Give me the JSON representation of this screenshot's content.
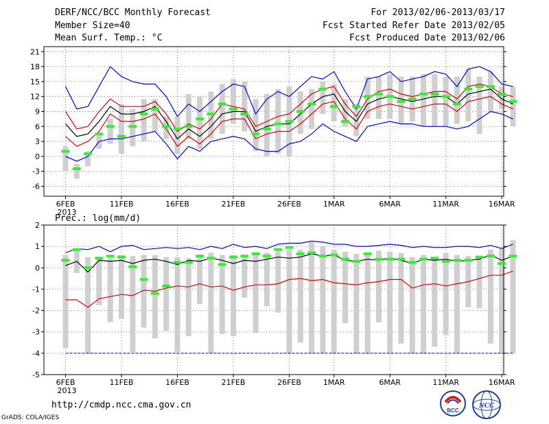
{
  "header": {
    "title": "DERF/NCC/BCC Monthly Forecast",
    "member_size": "Member Size=40",
    "variable": "Mean Surf. Temp.: °C",
    "forecast_period": "For 2013/02/06-2013/03/17",
    "start_date": "Fcst Started Refer Date 2013/02/05",
    "produced_date": "Fcst Produced Date 2013/02/06"
  },
  "footer": {
    "url": "http://cmdp.ncc.cma.gov.cn",
    "grads": "GrADS: COLA/IGES",
    "logo_left_text": "BCC",
    "logo_right_text": "NCC"
  },
  "colors": {
    "envelope": "#0000dd",
    "spread": "#dd0000",
    "mean": "#000000",
    "box": "#cfcfcf",
    "median": "#33ee33",
    "zero_line": "#000088"
  },
  "chart_data": [
    {
      "type": "line",
      "title": "Mean Surf. Temp.: °C",
      "x_tick_labels": [
        "6FEB",
        "11FEB",
        "16FEB",
        "21FEB",
        "26FEB",
        "1MAR",
        "6MAR",
        "11MAR",
        "16MAR"
      ],
      "x_tick_days": [
        0,
        5,
        10,
        15,
        20,
        24,
        29,
        34,
        39
      ],
      "year_label": "2013",
      "ylim": [
        -8,
        22
      ],
      "yticks": [
        -6,
        -3,
        0,
        3,
        6,
        9,
        12,
        15,
        18,
        21
      ],
      "ytick_labels": [
        "-6",
        "-3",
        "0",
        "3",
        "6",
        "9",
        "12",
        "15",
        "18",
        "21"
      ],
      "grid": true,
      "series": [
        {
          "name": "max",
          "values": [
            14,
            9.5,
            10,
            14,
            18,
            16,
            15,
            14.5,
            14.5,
            12,
            8,
            10.5,
            9,
            11,
            13,
            14.5,
            14,
            8.5,
            11.5,
            13,
            12,
            14,
            16,
            15.5,
            17,
            13,
            9.5,
            15.5,
            16,
            17,
            15,
            15.5,
            16,
            17,
            16.5,
            14,
            17.5,
            18,
            17,
            14.5,
            14
          ]
        },
        {
          "name": "upper",
          "values": [
            9,
            5.5,
            6,
            9,
            11.5,
            10,
            10,
            10,
            11,
            8.5,
            5,
            6.5,
            5.5,
            7.5,
            10.5,
            10,
            9.5,
            6,
            7,
            8,
            8.5,
            10.5,
            12.5,
            13.5,
            14,
            10.5,
            8,
            11.5,
            13,
            13.5,
            12.5,
            12,
            12.5,
            13,
            13,
            11.5,
            14,
            14.5,
            14,
            12.5,
            12
          ]
        },
        {
          "name": "mean",
          "values": [
            6.5,
            4,
            4.5,
            7,
            10,
            8.5,
            8.5,
            9,
            10,
            7,
            3.5,
            5.5,
            4,
            6,
            8.5,
            9,
            9,
            5,
            6,
            6.5,
            6.5,
            8.5,
            10.5,
            12,
            12.5,
            9,
            7,
            10.5,
            11.5,
            12,
            11.5,
            11,
            11.5,
            12,
            12,
            10.5,
            12.5,
            13,
            13.5,
            11.5,
            10.5
          ]
        },
        {
          "name": "lower",
          "values": [
            4,
            2,
            3,
            5,
            8.5,
            7,
            7,
            7.5,
            8.5,
            5.5,
            2,
            4,
            2.5,
            4.5,
            7,
            7.5,
            7.5,
            3.5,
            4.5,
            5,
            5,
            6.5,
            8.5,
            10.5,
            11,
            7.5,
            5.5,
            9,
            10,
            10.5,
            10,
            9.5,
            10,
            10.5,
            10.5,
            9,
            11,
            11.5,
            12,
            10.5,
            9.5
          ]
        },
        {
          "name": "min",
          "values": [
            0,
            -1,
            0,
            3,
            3.5,
            3.5,
            4,
            4.5,
            5,
            2.5,
            -0.5,
            2,
            1,
            3,
            3.5,
            4,
            3.5,
            1.5,
            1,
            1,
            2.5,
            3,
            4.5,
            6.5,
            5,
            4,
            3,
            6,
            6.5,
            7,
            6.5,
            6.5,
            6,
            6,
            6,
            5.5,
            6,
            7.5,
            9,
            8.5,
            7.5
          ]
        }
      ],
      "box_top": [
        2,
        -1.5,
        1,
        4.5,
        7.5,
        10.5,
        9.5,
        11.5,
        11.5,
        8,
        8,
        12.5,
        12,
        13,
        14.5,
        15.5,
        15,
        11.5,
        12.5,
        13.5,
        14,
        13,
        13.5,
        15,
        14.5,
        11.5,
        10.5,
        16,
        16,
        16.5,
        16,
        16,
        16.5,
        16.5,
        16,
        16,
        17.5,
        16,
        17,
        14,
        14
      ],
      "box_bottom": [
        -3,
        -4.5,
        -2,
        1.5,
        2.5,
        0.5,
        2,
        3,
        5,
        3.5,
        0.5,
        3.5,
        1.5,
        3.5,
        4.5,
        6.5,
        5,
        1,
        0,
        0.5,
        0,
        4.5,
        5.5,
        8.5,
        7,
        6,
        4,
        7.5,
        7.5,
        7.5,
        6.5,
        7,
        6,
        6,
        6,
        6.5,
        7,
        4.5,
        9,
        9.5,
        6
      ],
      "median": [
        1,
        -2.5,
        0.5,
        4.5,
        6,
        4,
        6,
        8.5,
        9.5,
        6,
        5.5,
        6,
        7.5,
        8.5,
        10.5,
        9.5,
        8.5,
        4.5,
        5.5,
        6.5,
        7,
        9,
        10.5,
        13.5,
        10,
        7,
        10,
        12,
        12.5,
        12,
        11,
        11.5,
        12.5,
        12.5,
        12,
        10.5,
        13.5,
        14,
        14,
        12.5,
        11
      ]
    },
    {
      "type": "line",
      "title": "Prec.: log(mm/d)",
      "x_tick_labels": [
        "6FEB",
        "11FEB",
        "16FEB",
        "21FEB",
        "26FEB",
        "1MAR",
        "6MAR",
        "11MAR",
        "16MAR"
      ],
      "x_tick_days": [
        0,
        5,
        10,
        15,
        20,
        24,
        29,
        34,
        39
      ],
      "year_label": "2013",
      "ylim": [
        -5,
        2
      ],
      "yticks": [
        -5,
        -4,
        -3,
        -2,
        -1,
        0,
        1,
        2
      ],
      "ytick_labels": [
        "-5",
        "-4",
        "-3",
        "-2",
        "-1",
        "0",
        "1",
        "2"
      ],
      "grid": true,
      "series": [
        {
          "name": "max",
          "values": [
            0.7,
            0.9,
            0.85,
            1.0,
            0.75,
            1.0,
            1.05,
            0.85,
            0.9,
            0.95,
            0.9,
            0.95,
            0.85,
            1.0,
            0.9,
            1.1,
            0.95,
            1.0,
            0.9,
            1.1,
            1.15,
            1.15,
            1.25,
            1.2,
            1.1,
            1.1,
            1.0,
            1.0,
            1.05,
            1.1,
            1.05,
            0.95,
            1.0,
            0.95,
            0.95,
            1.0,
            1.0,
            0.95,
            1.05,
            0.9,
            1.1
          ]
        },
        {
          "name": "mean",
          "values": [
            0.1,
            0.3,
            -0.2,
            0.35,
            0.3,
            0.35,
            0.2,
            0.35,
            0.4,
            0.3,
            0.15,
            0.35,
            0.3,
            0.45,
            0.35,
            0.2,
            0.35,
            0.3,
            0.4,
            0.5,
            0.45,
            0.5,
            0.65,
            0.55,
            0.6,
            0.35,
            0.3,
            0.4,
            0.35,
            0.45,
            0.35,
            0.2,
            0.4,
            0.35,
            0.4,
            0.3,
            0.35,
            0.4,
            0.6,
            0.35,
            0.55
          ]
        },
        {
          "name": "lower",
          "values": [
            -1.5,
            -1.5,
            -1.85,
            -1.45,
            -1.35,
            -1.25,
            -1.3,
            -1.05,
            -1.1,
            -0.95,
            -0.85,
            -0.9,
            -0.75,
            -0.9,
            -0.85,
            -1.05,
            -0.9,
            -0.8,
            -0.8,
            -0.75,
            -0.55,
            -0.5,
            -0.6,
            -0.55,
            -0.7,
            -0.75,
            -0.8,
            -0.7,
            -0.65,
            -0.55,
            -0.55,
            -0.95,
            -0.8,
            -0.75,
            -0.85,
            -0.75,
            -0.65,
            -0.5,
            -0.35,
            -0.35,
            -0.15
          ]
        }
      ],
      "floor": -4,
      "box_top": [
        0.6,
        0.9,
        0.5,
        0.5,
        0.55,
        0.6,
        0.55,
        0.6,
        0.6,
        0.5,
        0.5,
        0.45,
        0.6,
        0.7,
        0.6,
        0.6,
        0.6,
        0.6,
        0.7,
        0.75,
        0.85,
        0.85,
        1.2,
        1.0,
        0.85,
        0.75,
        0.65,
        0.7,
        0.8,
        0.75,
        0.7,
        0.5,
        0.6,
        0.5,
        0.7,
        0.6,
        0.55,
        0.55,
        0.85,
        0.9,
        1.3
      ],
      "box_bottom": [
        -3.75,
        -0.25,
        -4,
        -1.75,
        -2.55,
        -2.4,
        -3.95,
        -2.8,
        -3.3,
        -2.95,
        -3.95,
        -3.2,
        -1.7,
        -4,
        -3.1,
        -3.2,
        -1.4,
        -3.05,
        -1.8,
        -2.1,
        -4,
        -3.5,
        -4,
        -4,
        -4,
        -2.6,
        -4,
        -4,
        -2.55,
        -4,
        -3.55,
        -4,
        -4,
        -3.7,
        -3.15,
        -4,
        -1.85,
        -1.9,
        -3.55,
        -4,
        -4
      ]
    }
  ],
  "prec_ylabel": "Prec.: log(mm/d)",
  "prec_median": [
    0.35,
    0.85,
    0.0,
    0.45,
    0.55,
    0.5,
    0.05,
    -0.55,
    -1.2,
    -0.85,
    0.25,
    0.25,
    0.55,
    0.45,
    0.15,
    0.5,
    0.55,
    0.65,
    0.55,
    0.85,
    0.95,
    0.65,
    0.7,
    0.55,
    0.6,
    0.4,
    0.3,
    0.65,
    0.4,
    0.4,
    0.4,
    0.25,
    0.4,
    0.45,
    0.3,
    0.35,
    0.35,
    0.5,
    0.55,
    0.2,
    0.55
  ]
}
